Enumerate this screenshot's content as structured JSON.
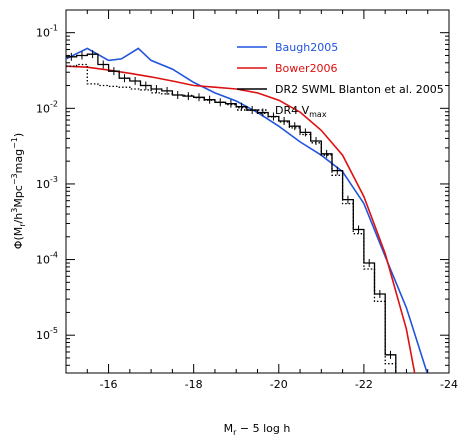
{
  "chart_data": {
    "type": "line",
    "xlabel": "M_r - 5 log h",
    "ylabel": "Φ(M_r/h^3Mpc^-3mag^-1)",
    "xlim": [
      -15,
      -24
    ],
    "ylim_log10": [
      -5.5,
      -0.7
    ],
    "y_scale": "log",
    "x_ticks": [
      "-16",
      "-18",
      "-20",
      "-22",
      "-24"
    ],
    "x_tick_values": [
      -16,
      -18,
      -20,
      -22,
      -24
    ],
    "y_ticks": [
      "10^-5",
      "10^-4",
      "10^-3",
      "10^-2",
      "10^-1"
    ],
    "y_tick_exps": [
      -5,
      -4,
      -3,
      -2,
      -1
    ],
    "legend_position": "top-right",
    "series": [
      {
        "name": "Baugh2005",
        "color": "#2255dd",
        "style": "line",
        "x": [
          -15.0,
          -15.5,
          -16.0,
          -16.3,
          -16.7,
          -17.0,
          -17.5,
          -18.0,
          -18.5,
          -19.0,
          -19.5,
          -20.0,
          -20.5,
          -21.0,
          -21.5,
          -22.0,
          -22.5,
          -23.0,
          -23.5
        ],
        "y": [
          0.045,
          0.062,
          0.043,
          0.045,
          0.062,
          0.043,
          0.033,
          0.022,
          0.016,
          0.0125,
          0.0088,
          0.0058,
          0.0036,
          0.0024,
          0.00145,
          0.00055,
          0.00011,
          2.3e-05,
          3e-06
        ]
      },
      {
        "name": "Bower2006",
        "color": "#dd1111",
        "style": "line",
        "x": [
          -15.0,
          -15.5,
          -16.0,
          -16.5,
          -17.0,
          -17.5,
          -18.0,
          -18.5,
          -19.0,
          -19.5,
          -20.0,
          -20.5,
          -21.0,
          -21.5,
          -22.0,
          -22.5,
          -23.0,
          -23.2
        ],
        "y": [
          0.036,
          0.035,
          0.032,
          0.029,
          0.026,
          0.023,
          0.02,
          0.019,
          0.018,
          0.016,
          0.0128,
          0.0089,
          0.0051,
          0.0024,
          0.00068,
          0.00012,
          1.2e-05,
          3e-06
        ]
      },
      {
        "name": "DR2 SWML Blanton et al. 2005",
        "color": "#000000",
        "style": "step",
        "x": [
          -15.0,
          -15.25,
          -15.5,
          -15.75,
          -16.0,
          -16.25,
          -16.5,
          -16.75,
          -17.0,
          -17.25,
          -17.5,
          -17.75,
          -18.0,
          -18.25,
          -18.5,
          -18.75,
          -19.0,
          -19.25,
          -19.5,
          -19.75,
          -20.0,
          -20.25,
          -20.5,
          -20.75,
          -21.0,
          -21.25,
          -21.5,
          -21.75,
          -22.0,
          -22.25,
          -22.5,
          -22.75
        ],
        "y": [
          0.048,
          0.05,
          0.052,
          0.038,
          0.031,
          0.025,
          0.023,
          0.02,
          0.018,
          0.017,
          0.015,
          0.0145,
          0.014,
          0.013,
          0.012,
          0.0115,
          0.0105,
          0.0095,
          0.0088,
          0.0078,
          0.0068,
          0.0058,
          0.0048,
          0.0037,
          0.0025,
          0.0015,
          0.00062,
          0.00025,
          9e-05,
          3.5e-05,
          5.5e-06,
          2.8e-06
        ]
      },
      {
        "name": "DR4 V_max",
        "color": "#000000",
        "style": "dotted-step",
        "x": [
          -15.0,
          -15.25,
          -15.5,
          -15.75,
          -16.0,
          -16.25,
          -16.5,
          -16.75,
          -17.0,
          -17.25,
          -17.5,
          -17.75,
          -18.0,
          -18.25,
          -18.5,
          -18.75,
          -19.0,
          -19.25,
          -19.5,
          -19.75,
          -20.0,
          -20.25,
          -20.5,
          -20.75,
          -21.0,
          -21.25,
          -21.5,
          -21.75,
          -22.0,
          -22.25,
          -22.5,
          -22.75
        ],
        "y": [
          0.036,
          0.038,
          0.021,
          0.02,
          0.0195,
          0.019,
          0.018,
          0.0175,
          0.016,
          0.0155,
          0.015,
          0.0148,
          0.0138,
          0.0128,
          0.012,
          0.0112,
          0.0102,
          0.0094,
          0.0086,
          0.0077,
          0.0066,
          0.0055,
          0.0045,
          0.0035,
          0.0024,
          0.0013,
          0.00055,
          0.00022,
          7.5e-05,
          2.8e-05,
          4.2e-06,
          2.5e-06
        ]
      }
    ]
  }
}
